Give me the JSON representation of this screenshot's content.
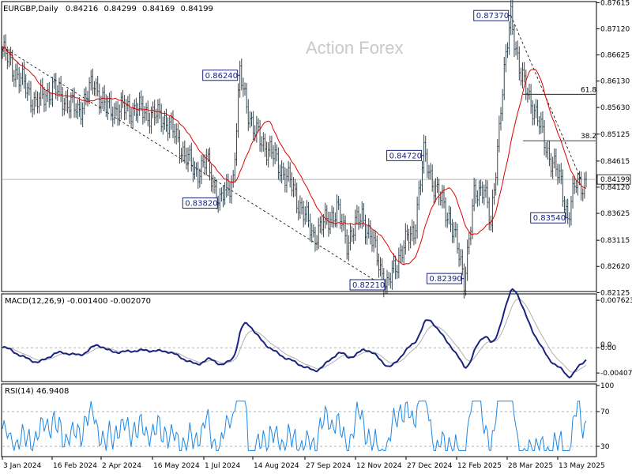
{
  "chart_data": [
    {
      "type": "ohlc",
      "header": "EURGBP,Daily",
      "ohlc_readout": [
        "0.84216",
        "0.84299",
        "0.84169",
        "0.84199"
      ],
      "watermark": "Action Forex",
      "ylim": [
        0.8216,
        0.8762
      ],
      "y_ticks": [
        "0.87615",
        "0.87120",
        "0.86625",
        "0.86130",
        "0.85630",
        "0.85125",
        "0.84615",
        "0.84120",
        "0.83625",
        "0.83115",
        "0.82620",
        "0.82125"
      ],
      "last_price_label": "0.84199",
      "x_ticks": [
        "3 Jan 2024",
        "16 Feb 2024",
        "2 Apr 2024",
        "16 May 2024",
        "1 Jul 2024",
        "14 Aug 2024",
        "27 Sep 2024",
        "12 Nov 2024",
        "27 Dec 2024",
        "12 Feb 2025",
        "28 Mar 2025",
        "13 May 2025"
      ],
      "pivots": [
        {
          "label": "0.86240",
          "index": 142,
          "value": 0.8624,
          "box": "left",
          "pos": "high"
        },
        {
          "label": "0.83820",
          "index": 130,
          "value": 0.8382,
          "box": "left",
          "pos": "low"
        },
        {
          "label": "0.82210",
          "index": 230,
          "value": 0.8221,
          "box": "left",
          "pos": "low"
        },
        {
          "label": "0.84720",
          "index": 252,
          "value": 0.8472,
          "box": "left",
          "pos": "high"
        },
        {
          "label": "0.82390",
          "index": 276,
          "value": 0.8239,
          "box": "left",
          "pos": "low"
        },
        {
          "label": "0.87370",
          "index": 304,
          "value": 0.8737,
          "box": "left",
          "pos": "high"
        },
        {
          "label": "0.83540",
          "index": 338,
          "value": 0.8354,
          "box": "left",
          "pos": "low"
        }
      ],
      "fib_levels": [
        {
          "label": "61.8",
          "value": 0.8588
        },
        {
          "label": "38.2",
          "value": 0.85
        }
      ],
      "trendlines": [
        {
          "from": [
            0,
            0.8678
          ],
          "to": [
            230,
            0.8221
          ]
        },
        {
          "from": [
            304,
            0.8737
          ],
          "to": [
            346,
            0.8426
          ]
        }
      ],
      "moving_average_color": "#e00000",
      "bar_color": "#37474f"
    },
    {
      "type": "line",
      "header": "MACD(12,26,9) -0.001400 -0.002070",
      "ylim": [
        -0.0052,
        0.0084
      ],
      "y_ticks": [
        "0.007623",
        "0.00",
        "-0.004073"
      ],
      "markers": [
        "0.0"
      ],
      "macd_color": "#1a237e",
      "signal_color": "#b0b0b0"
    },
    {
      "type": "line",
      "header": "RSI(14) 46.9408",
      "ylim": [
        20,
        100
      ],
      "y_ticks": [
        "100",
        "70",
        "30"
      ],
      "line_color": "#1e88e5"
    }
  ]
}
